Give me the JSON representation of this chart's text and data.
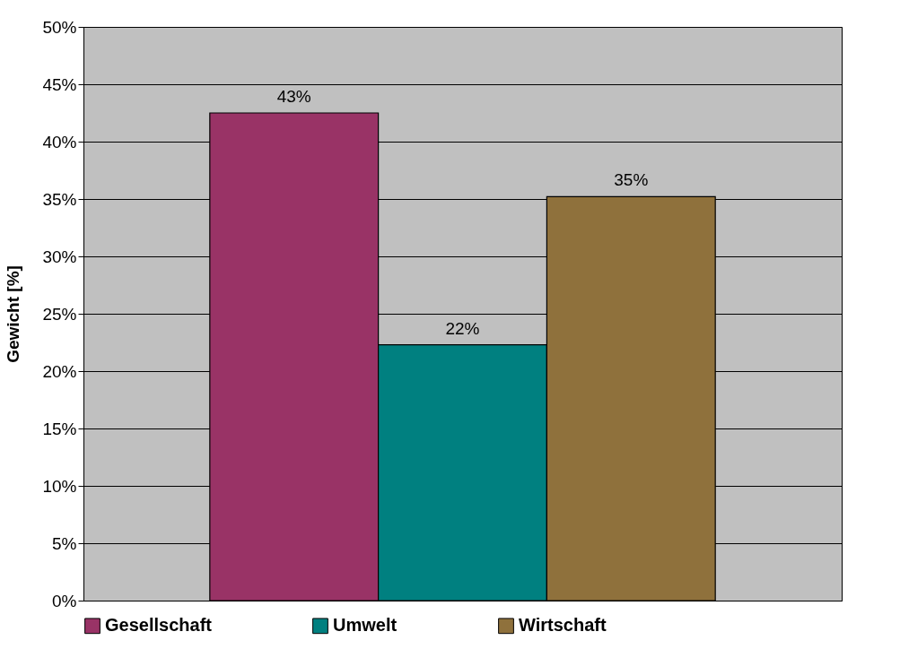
{
  "chart_data": {
    "type": "bar",
    "ylabel": "Gewicht [%]",
    "categories": [
      null
    ],
    "series": [
      {
        "name": "Gesellschaft",
        "color": "#993366",
        "values": [
          42.5
        ],
        "value_labels": [
          "43%"
        ]
      },
      {
        "name": "Umwelt",
        "color": "#008080",
        "values": [
          22.3
        ],
        "value_labels": [
          "22%"
        ]
      },
      {
        "name": "Wirtschaft",
        "color": "#8f713c",
        "values": [
          35.2
        ],
        "value_labels": [
          "35%"
        ]
      }
    ],
    "ylim": [
      0,
      50
    ],
    "yticks": [
      {
        "value": 0,
        "label": "0%"
      },
      {
        "value": 5,
        "label": "5%"
      },
      {
        "value": 10,
        "label": "10%"
      },
      {
        "value": 15,
        "label": "15%"
      },
      {
        "value": 20,
        "label": "20%"
      },
      {
        "value": 25,
        "label": "25%"
      },
      {
        "value": 30,
        "label": "30%"
      },
      {
        "value": 35,
        "label": "35%"
      },
      {
        "value": 40,
        "label": "40%"
      },
      {
        "value": 45,
        "label": "45%"
      },
      {
        "value": 50,
        "label": "50%"
      }
    ],
    "grid": "y",
    "legend": "bottom",
    "tick_labels": "y"
  }
}
